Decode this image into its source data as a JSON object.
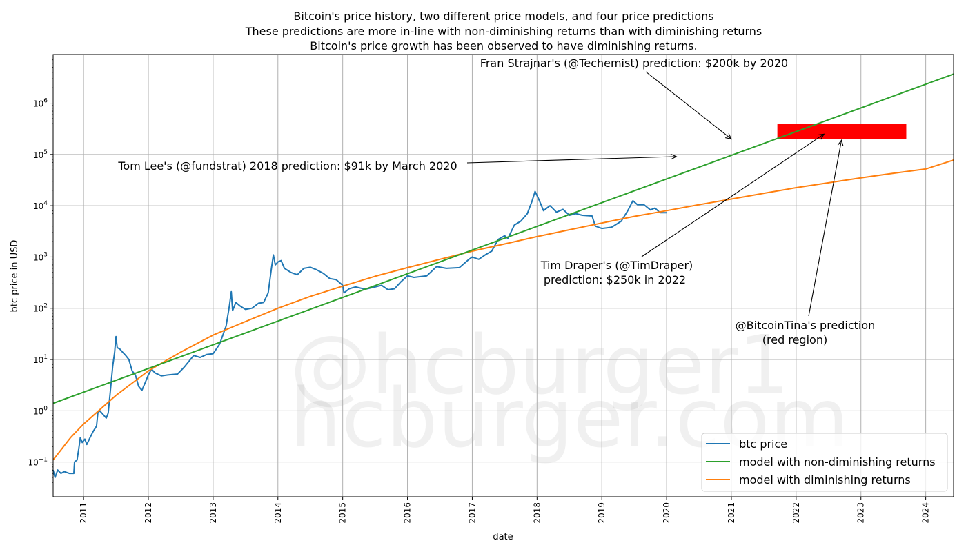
{
  "chart_data": {
    "type": "line",
    "title_lines": [
      "Bitcoin's price history, two different price models, and four price predictions",
      "These predictions are more in-line with non-diminishing returns than with diminishing returns",
      "Bitcoin's price growth has been observed to have diminishing returns."
    ],
    "xlabel": "date",
    "ylabel": "btc price in USD",
    "yscale": "log",
    "xlim": [
      2010.53,
      2024.43
    ],
    "ylim": [
      0.021,
      8900000
    ],
    "grid": true,
    "x_ticks": [
      2011,
      2012,
      2013,
      2014,
      2015,
      2016,
      2017,
      2018,
      2019,
      2020,
      2021,
      2022,
      2023,
      2024
    ],
    "y_ticks": [
      {
        "exp": -1,
        "value": 0.1
      },
      {
        "exp": 0,
        "value": 1
      },
      {
        "exp": 1,
        "value": 10
      },
      {
        "exp": 2,
        "value": 100
      },
      {
        "exp": 3,
        "value": 1000
      },
      {
        "exp": 4,
        "value": 10000
      },
      {
        "exp": 5,
        "value": 100000
      },
      {
        "exp": 6,
        "value": 1000000
      }
    ],
    "legend_position": "lower-right",
    "series": [
      {
        "name": "btc price",
        "color": "#1f77b4",
        "points": [
          [
            2010.53,
            0.07
          ],
          [
            2010.56,
            0.05
          ],
          [
            2010.6,
            0.07
          ],
          [
            2010.65,
            0.06
          ],
          [
            2010.7,
            0.065
          ],
          [
            2010.78,
            0.06
          ],
          [
            2010.85,
            0.06
          ],
          [
            2010.86,
            0.1
          ],
          [
            2010.9,
            0.11
          ],
          [
            2010.93,
            0.2
          ],
          [
            2010.95,
            0.3
          ],
          [
            2010.98,
            0.24
          ],
          [
            2011.02,
            0.28
          ],
          [
            2011.05,
            0.22
          ],
          [
            2011.1,
            0.3
          ],
          [
            2011.15,
            0.4
          ],
          [
            2011.2,
            0.5
          ],
          [
            2011.22,
            0.9
          ],
          [
            2011.25,
            1.0
          ],
          [
            2011.3,
            0.85
          ],
          [
            2011.35,
            0.72
          ],
          [
            2011.38,
            0.9
          ],
          [
            2011.42,
            3.0
          ],
          [
            2011.45,
            7.5
          ],
          [
            2011.48,
            14
          ],
          [
            2011.5,
            28
          ],
          [
            2011.52,
            17
          ],
          [
            2011.56,
            16
          ],
          [
            2011.6,
            14
          ],
          [
            2011.65,
            12
          ],
          [
            2011.7,
            10
          ],
          [
            2011.75,
            6
          ],
          [
            2011.8,
            5
          ],
          [
            2011.85,
            3
          ],
          [
            2011.9,
            2.5
          ],
          [
            2011.95,
            3.5
          ],
          [
            2012.0,
            5.0
          ],
          [
            2012.05,
            6.5
          ],
          [
            2012.1,
            5.5
          ],
          [
            2012.2,
            4.8
          ],
          [
            2012.3,
            5.0
          ],
          [
            2012.45,
            5.2
          ],
          [
            2012.55,
            7.0
          ],
          [
            2012.65,
            10
          ],
          [
            2012.7,
            12
          ],
          [
            2012.8,
            11
          ],
          [
            2012.9,
            12.5
          ],
          [
            2013.0,
            13
          ],
          [
            2013.1,
            20
          ],
          [
            2013.2,
            45
          ],
          [
            2013.25,
            110
          ],
          [
            2013.28,
            210
          ],
          [
            2013.3,
            90
          ],
          [
            2013.35,
            130
          ],
          [
            2013.42,
            110
          ],
          [
            2013.5,
            95
          ],
          [
            2013.6,
            100
          ],
          [
            2013.7,
            125
          ],
          [
            2013.78,
            130
          ],
          [
            2013.85,
            200
          ],
          [
            2013.9,
            600
          ],
          [
            2013.93,
            1100
          ],
          [
            2013.96,
            700
          ],
          [
            2014.0,
            800
          ],
          [
            2014.05,
            850
          ],
          [
            2014.1,
            600
          ],
          [
            2014.2,
            500
          ],
          [
            2014.3,
            450
          ],
          [
            2014.4,
            600
          ],
          [
            2014.5,
            630
          ],
          [
            2014.6,
            560
          ],
          [
            2014.7,
            480
          ],
          [
            2014.8,
            380
          ],
          [
            2014.9,
            360
          ],
          [
            2015.0,
            280
          ],
          [
            2015.02,
            200
          ],
          [
            2015.1,
            240
          ],
          [
            2015.2,
            260
          ],
          [
            2015.35,
            235
          ],
          [
            2015.5,
            260
          ],
          [
            2015.6,
            280
          ],
          [
            2015.7,
            230
          ],
          [
            2015.8,
            240
          ],
          [
            2015.9,
            330
          ],
          [
            2016.0,
            430
          ],
          [
            2016.1,
            400
          ],
          [
            2016.3,
            430
          ],
          [
            2016.45,
            650
          ],
          [
            2016.6,
            600
          ],
          [
            2016.8,
            620
          ],
          [
            2016.95,
            900
          ],
          [
            2017.0,
            1000
          ],
          [
            2017.1,
            900
          ],
          [
            2017.2,
            1100
          ],
          [
            2017.3,
            1300
          ],
          [
            2017.4,
            2200
          ],
          [
            2017.5,
            2600
          ],
          [
            2017.55,
            2300
          ],
          [
            2017.65,
            4200
          ],
          [
            2017.75,
            5000
          ],
          [
            2017.85,
            7000
          ],
          [
            2017.92,
            12000
          ],
          [
            2017.97,
            19000
          ],
          [
            2018.02,
            14000
          ],
          [
            2018.1,
            8000
          ],
          [
            2018.2,
            10000
          ],
          [
            2018.3,
            7500
          ],
          [
            2018.4,
            8500
          ],
          [
            2018.5,
            6500
          ],
          [
            2018.6,
            7000
          ],
          [
            2018.7,
            6500
          ],
          [
            2018.85,
            6300
          ],
          [
            2018.9,
            4000
          ],
          [
            2019.0,
            3600
          ],
          [
            2019.15,
            3800
          ],
          [
            2019.3,
            5000
          ],
          [
            2019.4,
            8000
          ],
          [
            2019.48,
            12500
          ],
          [
            2019.55,
            10500
          ],
          [
            2019.65,
            10500
          ],
          [
            2019.75,
            8300
          ],
          [
            2019.82,
            9000
          ],
          [
            2019.9,
            7300
          ],
          [
            2020.0,
            7300
          ]
        ]
      },
      {
        "name": "model with non-diminishing returns",
        "color": "#2ca02c",
        "points": [
          [
            2010.53,
            1.4
          ],
          [
            2024.43,
            3700000
          ]
        ]
      },
      {
        "name": "model with diminishing returns",
        "color": "#ff7f0e",
        "points": [
          [
            2010.53,
            0.11
          ],
          [
            2010.8,
            0.3
          ],
          [
            2011.0,
            0.55
          ],
          [
            2011.5,
            2.0
          ],
          [
            2012.0,
            6.0
          ],
          [
            2012.5,
            14
          ],
          [
            2013.0,
            30
          ],
          [
            2013.5,
            55
          ],
          [
            2014.0,
            100
          ],
          [
            2014.5,
            170
          ],
          [
            2015.0,
            270
          ],
          [
            2015.5,
            420
          ],
          [
            2016.0,
            620
          ],
          [
            2016.5,
            900
          ],
          [
            2017.0,
            1300
          ],
          [
            2017.5,
            1800
          ],
          [
            2018.0,
            2500
          ],
          [
            2018.5,
            3400
          ],
          [
            2019.0,
            4600
          ],
          [
            2019.5,
            6200
          ],
          [
            2020.0,
            8000
          ],
          [
            2020.5,
            10500
          ],
          [
            2021.0,
            13500
          ],
          [
            2021.5,
            17500
          ],
          [
            2022.0,
            22500
          ],
          [
            2022.5,
            28000
          ],
          [
            2023.0,
            35000
          ],
          [
            2023.5,
            43000
          ],
          [
            2024.0,
            52000
          ],
          [
            2024.43,
            78000
          ]
        ]
      }
    ],
    "regions": [
      {
        "name": "@BitcoinTina's prediction region",
        "color": "#ff0000",
        "x_range": [
          2021.71,
          2023.7
        ],
        "y_range": [
          200000,
          400000
        ]
      }
    ],
    "annotations": [
      {
        "id": "fran",
        "lines": [
          "Fran Strajnar's (@Techemist) prediction: $200k by 2020"
        ],
        "target": [
          2021.0,
          200000
        ]
      },
      {
        "id": "tomlee",
        "lines": [
          "Tom Lee's (@fundstrat) 2018 prediction: $91k by March 2020"
        ],
        "target": [
          2020.15,
          91000
        ]
      },
      {
        "id": "draper",
        "lines": [
          "Tim Draper's (@TimDraper)",
          " prediction: $250k in 2022"
        ],
        "target": [
          2022.43,
          250000
        ]
      },
      {
        "id": "tina",
        "lines": [
          "@BitcoinTina's prediction",
          "(red region)"
        ],
        "target": [
          2022.7,
          190000
        ]
      }
    ],
    "watermark_lines": [
      "@hcburger1",
      "hcburger.com"
    ]
  }
}
